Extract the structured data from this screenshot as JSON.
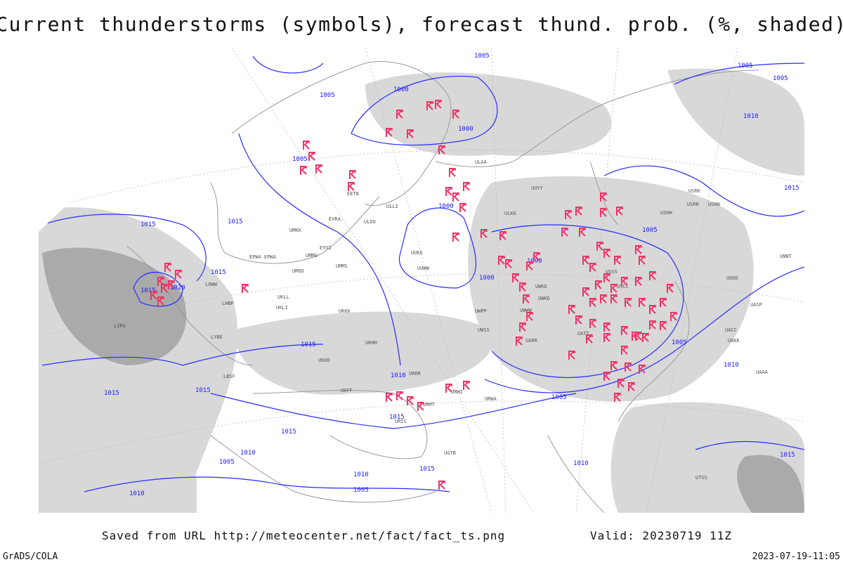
{
  "header": {
    "title": "Current thunderstorms (symbols), forecast thund. prob. (%, shaded)"
  },
  "footer": {
    "source": "Saved from URL http://meteocenter.net/fact/fact_ts.png",
    "valid": "Valid: 20230719 11Z",
    "credit": "GrADS/COLA",
    "timestamp": "2023-07-19-11:05"
  },
  "map": {
    "isobar_labels": [
      "1005",
      "1000",
      "1005",
      "1000",
      "1005",
      "1010",
      "1015",
      "1015",
      "1000",
      "1015",
      "1020",
      "1015",
      "1015",
      "1000",
      "1000",
      "1005",
      "1015",
      "1010",
      "1015",
      "1005",
      "1010",
      "1005",
      "1005",
      "1010",
      "1015",
      "1015",
      "1010",
      "1005",
      "1015",
      "1010",
      "1005",
      "1015",
      "1010",
      "1005",
      "1015"
    ],
    "station_labels": [
      "ULAA",
      "EETN",
      "ULLI",
      "UMKK",
      "EVRA",
      "ULOO",
      "EPWA",
      "UMMG",
      "EYVI",
      "UMMS",
      "UKLL",
      "UKLI",
      "UKKK",
      "UKHH",
      "UKOO",
      "UKFF",
      "URRR",
      "URWI",
      "URMT",
      "URSS",
      "UGTB",
      "UUEE",
      "UUWW",
      "UWWW",
      "UWPP",
      "UWSS",
      "UWKE",
      "UWKD",
      "USSS",
      "USCC",
      "UACC",
      "UAKK",
      "UAAA",
      "UTSS",
      "UUYY",
      "ULKK",
      "USRR",
      "USRK",
      "USNN",
      "UNNT",
      "USHH",
      "UASP",
      "UATT",
      "UARR",
      "URWA",
      "UUOO",
      "LIRA",
      "LBSF",
      "LYBE",
      "EPWA",
      "UMOO",
      "LOWW",
      "LHBP"
    ]
  }
}
